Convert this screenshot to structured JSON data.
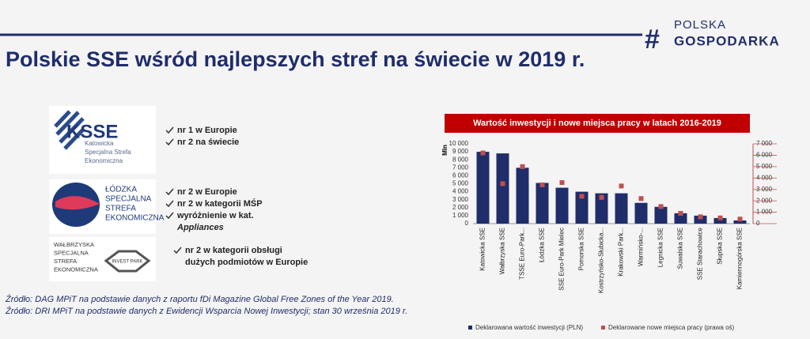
{
  "header": {
    "title": "Polskie SSE wśród najlepszych stref na świecie w 2019 r.",
    "brand": {
      "mark": "#",
      "line1": "POLSKA",
      "line2": "GOSPODARKA"
    }
  },
  "zones": [
    {
      "logo_title": "KSSE",
      "logo_lines": [
        "Katowicka",
        "Specjalna Strefa",
        "Ekonomiczna"
      ],
      "bullets": [
        {
          "lines": [
            "nr 1 w Europie"
          ]
        },
        {
          "lines": [
            "nr 2 na świecie"
          ]
        }
      ]
    },
    {
      "logo_lines": [
        "ŁÓDZKA",
        "SPECJALNA",
        "STREFA",
        "EKONOMICZNA"
      ],
      "bullets": [
        {
          "lines": [
            "nr 2 w Europie"
          ]
        },
        {
          "lines": [
            "nr 2 w kategorii MŚP"
          ]
        },
        {
          "lines": [
            "wyróżnienie w kat.",
            "Appliances"
          ]
        }
      ]
    },
    {
      "logo_lines": [
        "WAŁBRZYSKA",
        "SPECJALNA",
        "STREFA",
        "EKONOMICZNA"
      ],
      "logo_badge": "INVEST PARK",
      "bullets": [
        {
          "lines": [
            "nr 2 w kategorii obsługi",
            "dużych podmiotów w Europie"
          ]
        }
      ]
    }
  ],
  "sources": [
    "Źródło: DAG MPiT na podstawie danych z raportu fDi Magazine Global Free Zones of the Year 2019.",
    "Źródło: DRI MPiT na podstawie danych z Ewidencji Wsparcia Nowej Inwestycji; stan 30 września 2019 r."
  ],
  "chart_data": {
    "type": "bar",
    "title": "Wartość inwestycji i nowe miejsca pracy w latach 2016-2019",
    "y_label": "Mln",
    "categories": [
      "Katowicka SSE",
      "Wałbrzyska SSE",
      "TSSE Euro-Park...",
      "Łódzka SSE",
      "SSE Euro-Park Mielec",
      "Pomorska SSE",
      "Kostrzyńsko-Słubicka...",
      "Krakowski Park...",
      "Warmińsko-...",
      "Legnicka SSE",
      "Suwalska SSE",
      "SSE Starachowice",
      "Słupska SSE",
      "Kamiennogórska SSE"
    ],
    "series": [
      {
        "name": "Deklarowana wartość inwestycji (PLN)",
        "color": "#1f2d6b",
        "values": [
          9000,
          8800,
          7000,
          5100,
          4500,
          4000,
          3800,
          3800,
          2600,
          2100,
          1300,
          1000,
          700,
          400
        ]
      },
      {
        "name": "Deklarowane nowe miejsca pracy (prawa oś)",
        "color": "#c0504d",
        "axis": "y2",
        "marker": "square",
        "values": [
          6200,
          3500,
          5000,
          3400,
          3600,
          2400,
          2300,
          3300,
          2200,
          1500,
          900,
          600,
          500,
          400
        ]
      }
    ],
    "ylim": [
      0,
      10000
    ],
    "yticks": [
      0,
      {
        "value": 1000,
        "label": "1 000"
      },
      {
        "value": 2000,
        "label": "2 000"
      },
      {
        "value": 3000,
        "label": "3 000"
      },
      {
        "value": 4000,
        "label": "4 000"
      },
      {
        "value": 5000,
        "label": "5 000"
      },
      {
        "value": 6000,
        "label": "6 000"
      },
      {
        "value": 7000,
        "label": "7 000"
      },
      {
        "value": 8000,
        "label": "8 000"
      },
      {
        "value": 9000,
        "label": "9 000"
      },
      {
        "value": 10000,
        "label": "10 000"
      }
    ],
    "y2lim": [
      0,
      7000
    ],
    "y2ticks": [
      0,
      {
        "value": 1000,
        "label": "1 000"
      },
      {
        "value": 2000,
        "label": "2 000"
      },
      {
        "value": 3000,
        "label": "3 000"
      },
      {
        "value": 4000,
        "label": "4 000"
      },
      {
        "value": 5000,
        "label": "5 000"
      },
      {
        "value": 6000,
        "label": "6 000"
      },
      {
        "value": 7000,
        "label": "7 000"
      }
    ],
    "grid": false,
    "legend": "bottom",
    "title_color": "#c00000"
  }
}
